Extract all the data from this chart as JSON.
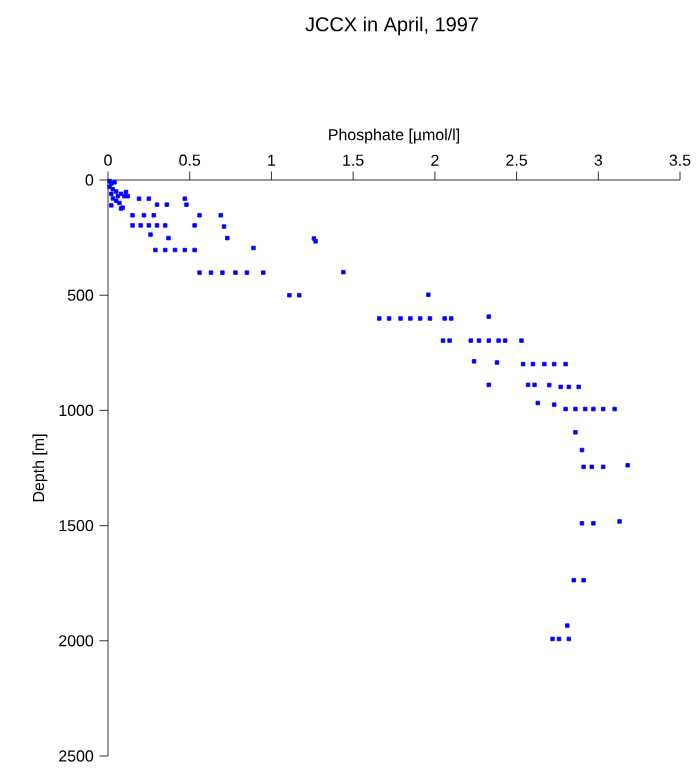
{
  "chart_data": {
    "type": "scatter",
    "title": "JCCX in April, 1997",
    "xlabel": "Phosphate [µmol/l]",
    "ylabel": "Depth [m]",
    "xlim": [
      0,
      3.5
    ],
    "xticks": [
      0,
      0.5,
      1,
      1.5,
      2,
      2.5,
      3,
      3.5
    ],
    "ylim": [
      2500,
      0
    ],
    "yticks": [
      0,
      500,
      1000,
      1500,
      2000,
      2500
    ],
    "marker": "square",
    "series": [
      {
        "color": "#0000ff",
        "x": [
          0.01,
          0.02,
          0.04,
          0.01,
          0.03,
          0.05,
          0.02,
          0.06,
          0.08,
          0.03,
          0.05,
          0.1,
          0.12,
          0.07,
          0.02,
          0.09,
          0.11,
          0.19,
          0.25,
          0.3,
          0.36,
          0.47,
          0.48,
          0.08,
          0.15,
          0.22,
          0.28,
          0.56,
          0.69,
          0.15,
          0.2,
          0.25,
          0.3,
          0.35,
          0.53,
          0.71,
          0.26,
          0.37,
          0.73,
          0.29,
          0.35,
          0.41,
          0.47,
          0.53,
          0.89,
          1.26,
          1.27,
          0.56,
          0.63,
          0.7,
          0.78,
          0.85,
          0.95,
          1.44,
          1.11,
          1.17,
          1.96,
          1.66,
          1.72,
          1.79,
          1.85,
          1.91,
          1.97,
          2.06,
          2.1,
          2.33,
          2.05,
          2.09,
          2.22,
          2.27,
          2.33,
          2.39,
          2.43,
          2.53,
          2.24,
          2.38,
          2.54,
          2.6,
          2.67,
          2.73,
          2.8,
          2.33,
          2.57,
          2.61,
          2.7,
          2.77,
          2.82,
          2.88,
          2.63,
          2.73,
          2.8,
          2.86,
          2.92,
          2.97,
          3.03,
          3.1,
          2.86,
          2.9,
          2.91,
          2.96,
          3.03,
          3.18,
          2.9,
          2.97,
          3.13,
          2.85,
          2.91,
          2.81,
          2.72,
          2.76,
          2.82
        ],
        "values": [
          5,
          15,
          10,
          30,
          40,
          50,
          60,
          70,
          60,
          80,
          90,
          70,
          70,
          100,
          110,
          120,
          52,
          81,
          81,
          107,
          107,
          81,
          107,
          124,
          153,
          153,
          153,
          153,
          153,
          197,
          197,
          197,
          197,
          197,
          197,
          202,
          237,
          252,
          252,
          304,
          304,
          304,
          304,
          304,
          295,
          254,
          266,
          402,
          402,
          402,
          402,
          402,
          402,
          400,
          500,
          500,
          498,
          601,
          601,
          601,
          601,
          601,
          601,
          601,
          601,
          593,
          697,
          697,
          697,
          697,
          697,
          697,
          697,
          697,
          787,
          792,
          799,
          799,
          799,
          799,
          799,
          889,
          889,
          889,
          890,
          898,
          898,
          898,
          968,
          975,
          994,
          994,
          994,
          994,
          994,
          994,
          1095,
          1172,
          1245,
          1245,
          1245,
          1238,
          1490,
          1490,
          1482,
          1737,
          1737,
          1934,
          1992,
          1992,
          1992
        ]
      }
    ]
  }
}
